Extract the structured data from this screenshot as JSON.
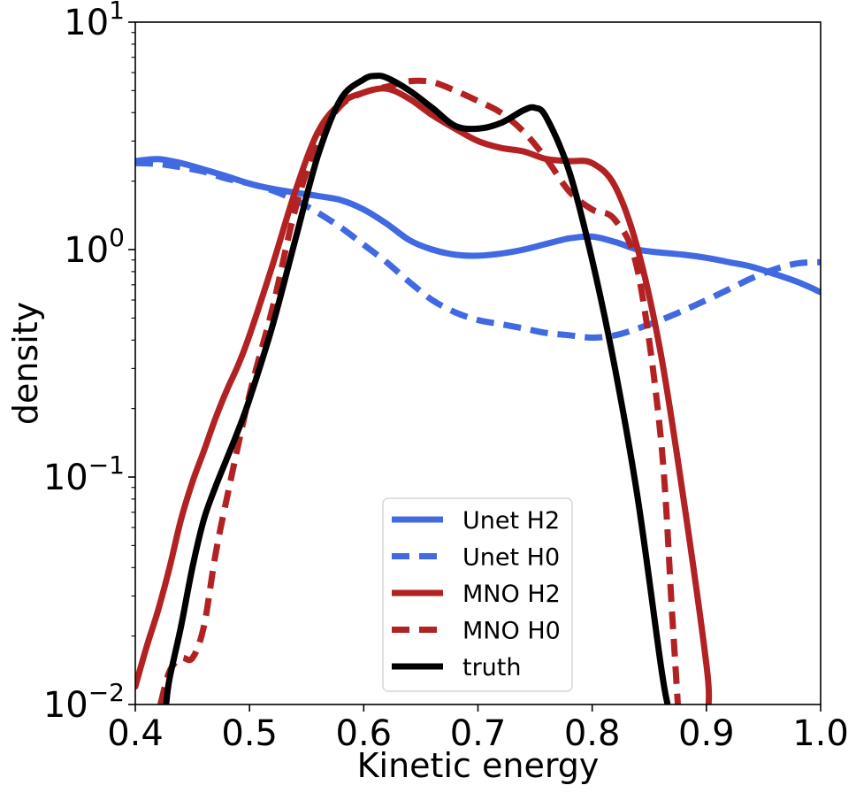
{
  "chart_data": {
    "type": "line",
    "xlabel": "Kinetic energy",
    "ylabel": "density",
    "xscale": "linear",
    "yscale": "log",
    "xlim": [
      0.4,
      1.0
    ],
    "ylim": [
      0.01,
      10
    ],
    "x_ticks": [
      {
        "value": 0.4,
        "label": "0.4"
      },
      {
        "value": 0.5,
        "label": "0.5"
      },
      {
        "value": 0.6,
        "label": "0.6"
      },
      {
        "value": 0.7,
        "label": "0.7"
      },
      {
        "value": 0.8,
        "label": "0.8"
      },
      {
        "value": 0.9,
        "label": "0.9"
      },
      {
        "value": 1.0,
        "label": "1.0"
      }
    ],
    "y_ticks": [
      {
        "value": 0.01,
        "base": "10",
        "exp": "−2"
      },
      {
        "value": 0.1,
        "base": "10",
        "exp": "−1"
      },
      {
        "value": 1,
        "base": "10",
        "exp": "0"
      },
      {
        "value": 10,
        "base": "10",
        "exp": "1"
      }
    ],
    "legend_position": "lower-center",
    "series": [
      {
        "name": "Unet H2",
        "color": "#4169e1",
        "dash": "solid",
        "x": [
          0.4,
          0.42,
          0.44,
          0.46,
          0.48,
          0.5,
          0.52,
          0.54,
          0.56,
          0.58,
          0.6,
          0.62,
          0.64,
          0.66,
          0.68,
          0.7,
          0.72,
          0.74,
          0.76,
          0.78,
          0.8,
          0.82,
          0.84,
          0.86,
          0.88,
          0.9,
          0.92,
          0.94,
          0.96,
          0.98,
          1.0
        ],
        "y": [
          2.45,
          2.5,
          2.4,
          2.25,
          2.1,
          1.95,
          1.85,
          1.78,
          1.72,
          1.65,
          1.5,
          1.3,
          1.1,
          1.0,
          0.95,
          0.94,
          0.96,
          1.0,
          1.06,
          1.12,
          1.14,
          1.08,
          1.0,
          0.97,
          0.95,
          0.92,
          0.88,
          0.84,
          0.78,
          0.72,
          0.65
        ]
      },
      {
        "name": "Unet H0",
        "color": "#4169e1",
        "dash": "dashed",
        "x": [
          0.4,
          0.42,
          0.44,
          0.46,
          0.48,
          0.5,
          0.52,
          0.54,
          0.56,
          0.58,
          0.6,
          0.62,
          0.64,
          0.66,
          0.68,
          0.7,
          0.72,
          0.74,
          0.76,
          0.78,
          0.8,
          0.82,
          0.84,
          0.86,
          0.88,
          0.9,
          0.92,
          0.94,
          0.96,
          0.98,
          1.0
        ],
        "y": [
          2.4,
          2.38,
          2.3,
          2.2,
          2.05,
          1.95,
          1.82,
          1.65,
          1.45,
          1.25,
          1.05,
          0.88,
          0.72,
          0.6,
          0.53,
          0.49,
          0.47,
          0.45,
          0.43,
          0.42,
          0.41,
          0.42,
          0.45,
          0.49,
          0.54,
          0.6,
          0.67,
          0.75,
          0.82,
          0.87,
          0.88
        ]
      },
      {
        "name": "MNO H2",
        "color": "#b22222",
        "dash": "solid",
        "x": [
          0.4,
          0.41,
          0.42,
          0.43,
          0.44,
          0.45,
          0.46,
          0.47,
          0.48,
          0.49,
          0.5,
          0.52,
          0.54,
          0.56,
          0.58,
          0.6,
          0.62,
          0.64,
          0.66,
          0.68,
          0.7,
          0.72,
          0.74,
          0.76,
          0.78,
          0.8,
          0.82,
          0.84,
          0.86,
          0.88,
          0.9,
          0.902
        ],
        "y": [
          0.012,
          0.018,
          0.026,
          0.04,
          0.065,
          0.095,
          0.13,
          0.18,
          0.24,
          0.31,
          0.42,
          0.85,
          1.8,
          3.3,
          4.4,
          4.9,
          5.1,
          4.6,
          3.9,
          3.4,
          3.0,
          2.8,
          2.7,
          2.5,
          2.45,
          2.4,
          1.9,
          1.0,
          0.35,
          0.08,
          0.015,
          0.01
        ]
      },
      {
        "name": "MNO H0",
        "color": "#b22222",
        "dash": "dashed",
        "x": [
          0.422,
          0.43,
          0.44,
          0.45,
          0.46,
          0.47,
          0.48,
          0.5,
          0.52,
          0.54,
          0.56,
          0.58,
          0.6,
          0.62,
          0.64,
          0.66,
          0.68,
          0.7,
          0.72,
          0.74,
          0.76,
          0.78,
          0.8,
          0.82,
          0.84,
          0.86,
          0.87,
          0.875
        ],
        "y": [
          0.01,
          0.014,
          0.016,
          0.016,
          0.022,
          0.045,
          0.08,
          0.23,
          0.55,
          1.5,
          3.0,
          4.3,
          4.9,
          5.2,
          5.5,
          5.45,
          5.0,
          4.5,
          4.0,
          3.3,
          2.5,
          1.8,
          1.5,
          1.35,
          0.8,
          0.15,
          0.025,
          0.01
        ]
      },
      {
        "name": "truth",
        "color": "#000000",
        "dash": "solid",
        "x": [
          0.427,
          0.43,
          0.44,
          0.45,
          0.46,
          0.47,
          0.48,
          0.49,
          0.5,
          0.52,
          0.54,
          0.56,
          0.58,
          0.6,
          0.61,
          0.62,
          0.64,
          0.66,
          0.68,
          0.7,
          0.72,
          0.74,
          0.75,
          0.76,
          0.78,
          0.8,
          0.82,
          0.84,
          0.86,
          0.866
        ],
        "y": [
          0.01,
          0.013,
          0.022,
          0.04,
          0.065,
          0.09,
          0.12,
          0.16,
          0.22,
          0.46,
          1.1,
          2.6,
          4.6,
          5.6,
          5.8,
          5.7,
          5.0,
          4.2,
          3.5,
          3.4,
          3.6,
          4.1,
          4.2,
          3.8,
          2.2,
          0.9,
          0.3,
          0.08,
          0.015,
          0.01
        ]
      }
    ]
  }
}
